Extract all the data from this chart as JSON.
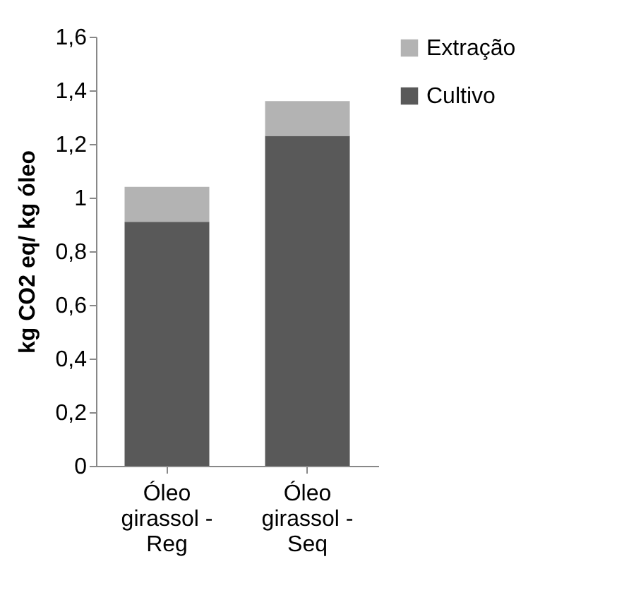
{
  "chart_data": {
    "type": "bar",
    "stacked": true,
    "ylabel": "kg CO2 eq/ kg óleo",
    "categories": [
      "Óleo girassol - Reg",
      "Óleo girassol - Seq"
    ],
    "series": [
      {
        "name": "Cultivo",
        "color": "#595959",
        "values": [
          0.91,
          1.23
        ]
      },
      {
        "name": "Extração",
        "color": "#b3b3b3",
        "values": [
          0.13,
          0.13
        ]
      }
    ],
    "ylim": [
      0,
      1.6
    ],
    "yticks": [
      0,
      {
        "value": 0.2,
        "label": "0,2"
      },
      {
        "value": 0.4,
        "label": "0,4"
      },
      {
        "value": 0.6,
        "label": "0,6"
      },
      {
        "value": 0.8,
        "label": "0,8"
      },
      1,
      {
        "value": 1.2,
        "label": "1,2"
      },
      {
        "value": 1.4,
        "label": "1,4"
      },
      {
        "value": 1.6,
        "label": "1,6"
      }
    ],
    "grid": false,
    "legend": "right"
  }
}
